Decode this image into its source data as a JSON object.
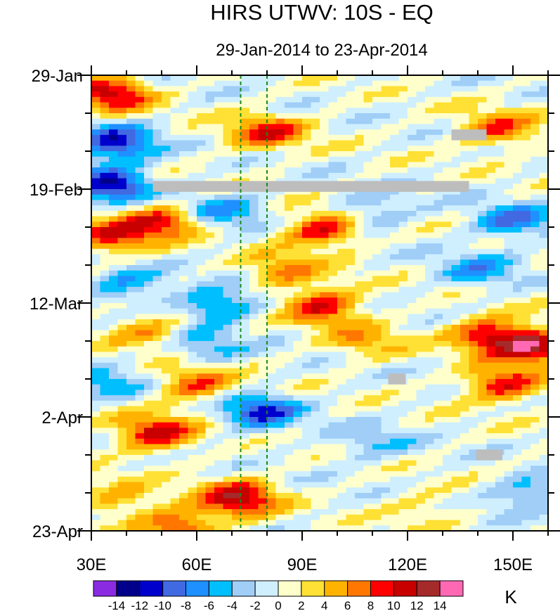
{
  "chart_data": {
    "type": "heatmap",
    "title": "HIRS UTWV: 10S - EQ",
    "subtitle": "29-Jan-2014 to 23-Apr-2014",
    "x_axis": {
      "range": [
        30,
        160
      ],
      "ticks": [
        30,
        60,
        90,
        120,
        150
      ],
      "tick_labels": [
        "30E",
        "60E",
        "90E",
        "120E",
        "150E"
      ]
    },
    "y_axis": {
      "range_days": [
        0,
        84
      ],
      "ticks_days": [
        0,
        21,
        42,
        63,
        84
      ],
      "tick_labels": [
        "29-Jan",
        "19-Feb",
        "12-Mar",
        "2-Apr",
        "23-Apr"
      ]
    },
    "colorbar": {
      "unit": "K",
      "levels": [
        -14,
        -12,
        -10,
        -8,
        -6,
        -4,
        -2,
        0,
        2,
        4,
        6,
        8,
        10,
        12,
        14
      ],
      "level_labels": [
        "-14",
        "-12",
        "-10",
        "-8",
        "-6",
        "-4",
        "-2",
        "0",
        "2",
        "4",
        "6",
        "8",
        "10",
        "12",
        "14"
      ],
      "colors": [
        "#8a2be2",
        "#00008b",
        "#0000cd",
        "#4169e1",
        "#1e90ff",
        "#00bfff",
        "#a0cef7",
        "#cfefff",
        "#ffffcc",
        "#ffe135",
        "#ffb300",
        "#ff7700",
        "#ff0000",
        "#c80000",
        "#a52a2a",
        "#ff69b4"
      ]
    },
    "reference_lines_lon": [
      72.5,
      80
    ],
    "missing_data": [
      {
        "lon": [
          47.5,
          137.5
        ],
        "day": [
          19.5,
          21.5
        ]
      },
      {
        "lon": [
          132.5,
          142.5
        ],
        "day": [
          10,
          12
        ]
      },
      {
        "lon": [
          114.5,
          119.5
        ],
        "day": [
          55,
          57
        ]
      },
      {
        "lon": [
          139.5,
          147
        ],
        "day": [
          69,
          71
        ]
      }
    ],
    "anomaly_centers": [
      {
        "lon": 36,
        "day": 3.5,
        "value": 11
      },
      {
        "lon": 80,
        "day": 10.5,
        "value": 9
      },
      {
        "lon": 146,
        "day": 10,
        "value": 8
      },
      {
        "lon": 37,
        "day": 12.5,
        "value": -11
      },
      {
        "lon": 36,
        "day": 20,
        "value": -12
      },
      {
        "lon": 68,
        "day": 25,
        "value": -6
      },
      {
        "lon": 110,
        "day": 25,
        "value": -5
      },
      {
        "lon": 150,
        "day": 27,
        "value": -8
      },
      {
        "lon": 36,
        "day": 30,
        "value": 9
      },
      {
        "lon": 50,
        "day": 27,
        "value": 9
      },
      {
        "lon": 96,
        "day": 28.5,
        "value": 10
      },
      {
        "lon": 85,
        "day": 36,
        "value": 6
      },
      {
        "lon": 96,
        "day": 42.5,
        "value": 10
      },
      {
        "lon": 66,
        "day": 42.5,
        "value": -8
      },
      {
        "lon": 140,
        "day": 36,
        "value": -6
      },
      {
        "lon": 40,
        "day": 38.5,
        "value": -6
      },
      {
        "lon": 143,
        "day": 48,
        "value": 10
      },
      {
        "lon": 156,
        "day": 50,
        "value": 12
      },
      {
        "lon": 108,
        "day": 49,
        "value": 5
      },
      {
        "lon": 46,
        "day": 47,
        "value": 6
      },
      {
        "lon": 62,
        "day": 50,
        "value": -5
      },
      {
        "lon": 60,
        "day": 57,
        "value": 8
      },
      {
        "lon": 34,
        "day": 57,
        "value": -5
      },
      {
        "lon": 78,
        "day": 62,
        "value": -10
      },
      {
        "lon": 147,
        "day": 57,
        "value": 10
      },
      {
        "lon": 48,
        "day": 66,
        "value": 11
      },
      {
        "lon": 110,
        "day": 68,
        "value": -4
      },
      {
        "lon": 72,
        "day": 78,
        "value": 12
      },
      {
        "lon": 55,
        "day": 83,
        "value": 9
      },
      {
        "lon": 38,
        "day": 78,
        "value": 5
      },
      {
        "lon": 155,
        "day": 77,
        "value": -6
      },
      {
        "lon": 125,
        "day": 80,
        "value": 3
      }
    ]
  }
}
